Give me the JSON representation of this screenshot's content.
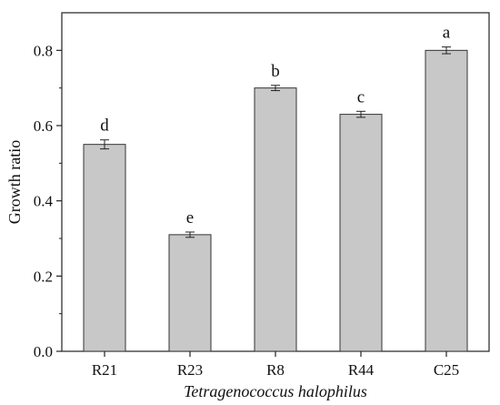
{
  "chart_data": {
    "type": "bar",
    "categories": [
      "R21",
      "R23",
      "R8",
      "R44",
      "C25"
    ],
    "values": [
      0.55,
      0.31,
      0.7,
      0.63,
      0.8
    ],
    "errors": [
      0.012,
      0.007,
      0.007,
      0.008,
      0.009
    ],
    "significance_labels": [
      "d",
      "e",
      "b",
      "c",
      "a"
    ],
    "xlabel": "Tetragenococcus halophilus",
    "ylabel": "Growth ratio",
    "ylim": [
      0,
      0.9
    ],
    "yticks": [
      "0.0",
      "0.2",
      "0.4",
      "0.6",
      "0.8"
    ],
    "grid": false,
    "colors": {
      "bar_fill": "#c8c8c8",
      "bar_stroke": "#333333",
      "axis": "#222222"
    }
  }
}
